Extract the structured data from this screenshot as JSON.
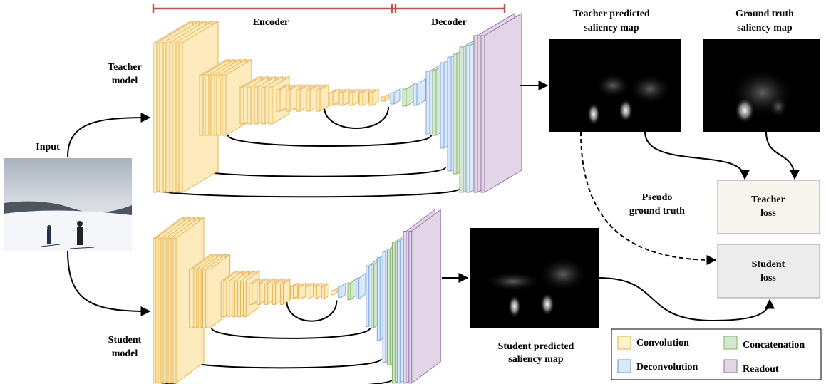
{
  "encoder_label": "Encoder",
  "decoder_label": "Decoder",
  "teacher_model": [
    "Teacher",
    "model"
  ],
  "student_model": [
    "Student",
    "model"
  ],
  "input_label": "Input",
  "teacher_map": [
    "Teacher predicted",
    "saliency map"
  ],
  "ground_truth_map": [
    "Ground truth",
    "saliency map"
  ],
  "student_map": [
    "Student predicted",
    "saliency map"
  ],
  "pseudo_label": [
    "Pseudo",
    "ground truth"
  ],
  "teacher_loss": [
    "Teacher",
    "loss"
  ],
  "student_loss": [
    "Student",
    "loss"
  ],
  "legend": [
    "Convolution",
    "Concatenation",
    "Deconvolution",
    "Readout"
  ]
}
